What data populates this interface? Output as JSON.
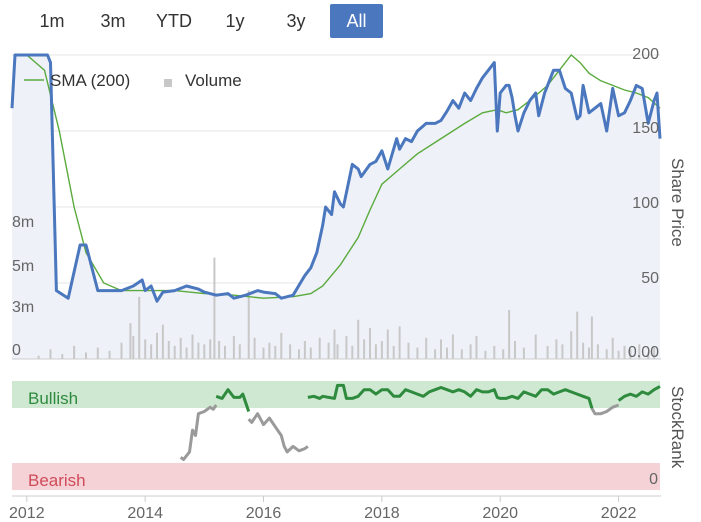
{
  "range_selector": {
    "buttons": [
      {
        "label": "1m",
        "active": false
      },
      {
        "label": "3m",
        "active": false
      },
      {
        "label": "YTD",
        "active": false
      },
      {
        "label": "1y",
        "active": false
      },
      {
        "label": "3y",
        "active": false
      },
      {
        "label": "All",
        "active": true
      }
    ]
  },
  "colors": {
    "price": "#4a77be",
    "sma": "#5aaa3c",
    "volume": "#c8c8c8",
    "rank_bullish": "#2e8b3e",
    "rank_neutral": "#9a9a9a",
    "bullish_band": "#cfe8d2",
    "bearish_band": "#f5d2d6",
    "price_area": "#eef1f8"
  },
  "chart_data": [
    {
      "type": "line",
      "ylabel": "Share Price",
      "ylim": [
        0,
        200
      ],
      "y_ticks": [
        "0.00",
        "50",
        "100",
        "150",
        "200"
      ],
      "volume_ticks": [
        "0",
        "3m",
        "5m",
        "8m"
      ],
      "volume_ylim": [
        0,
        9
      ],
      "xlim": [
        2011.75,
        2022.7
      ],
      "legend": {
        "placement": "top-left",
        "entries": [
          "SMA (200)",
          "Volume"
        ]
      },
      "series": [
        {
          "name": "Share Price",
          "x": [
            2011.75,
            2011.8,
            2012.0,
            2012.15,
            2012.2,
            2012.35,
            2012.4,
            2012.5,
            2012.7,
            2012.9,
            2013.0,
            2013.1,
            2013.2,
            2013.4,
            2013.6,
            2013.8,
            2013.95,
            2014.0,
            2014.1,
            2014.2,
            2014.3,
            2014.5,
            2014.7,
            2014.9,
            2015.0,
            2015.2,
            2015.4,
            2015.5,
            2015.7,
            2015.9,
            2016.0,
            2016.2,
            2016.3,
            2016.5,
            2016.7,
            2016.8,
            2016.9,
            2017.0,
            2017.05,
            2017.15,
            2017.2,
            2017.3,
            2017.35,
            2017.5,
            2017.6,
            2017.65,
            2017.8,
            2017.9,
            2018.0,
            2018.1,
            2018.25,
            2018.3,
            2018.4,
            2018.5,
            2018.6,
            2018.75,
            2018.9,
            2019.0,
            2019.1,
            2019.2,
            2019.3,
            2019.4,
            2019.5,
            2019.6,
            2019.7,
            2019.8,
            2019.9,
            2019.95,
            2020.0,
            2020.1,
            2020.15,
            2020.2,
            2020.25,
            2020.3,
            2020.4,
            2020.5,
            2020.6,
            2020.65,
            2020.75,
            2020.8,
            2020.9,
            2021.0,
            2021.1,
            2021.2,
            2021.3,
            2021.35,
            2021.4,
            2021.5,
            2021.6,
            2021.7,
            2021.8,
            2021.9,
            2022.0,
            2022.1,
            2022.2,
            2022.3,
            2022.4,
            2022.5,
            2022.6,
            2022.65,
            2022.7
          ],
          "y": [
            165,
            200,
            200,
            200,
            200,
            200,
            195,
            45,
            40,
            75,
            75,
            60,
            45,
            45,
            45,
            48,
            52,
            45,
            48,
            38,
            44,
            45,
            48,
            46,
            44,
            42,
            43,
            40,
            42,
            45,
            44,
            43,
            40,
            42,
            55,
            60,
            70,
            88,
            100,
            95,
            110,
            102,
            100,
            128,
            125,
            120,
            128,
            130,
            137,
            125,
            145,
            138,
            145,
            143,
            150,
            155,
            155,
            157,
            163,
            170,
            165,
            175,
            170,
            178,
            185,
            190,
            195,
            150,
            175,
            180,
            180,
            172,
            160,
            150,
            162,
            170,
            175,
            160,
            175,
            180,
            190,
            190,
            178,
            175,
            158,
            160,
            180,
            162,
            165,
            168,
            150,
            178,
            160,
            162,
            170,
            180,
            178,
            155,
            170,
            175,
            145
          ]
        },
        {
          "name": "SMA (200)",
          "x": [
            2012.0,
            2012.3,
            2012.55,
            2012.8,
            2013.0,
            2013.3,
            2013.6,
            2014.0,
            2014.5,
            2015.0,
            2015.5,
            2016.0,
            2016.5,
            2016.8,
            2017.0,
            2017.3,
            2017.6,
            2017.8,
            2018.0,
            2018.3,
            2018.6,
            2019.0,
            2019.4,
            2019.7,
            2019.95,
            2020.1,
            2020.3,
            2020.5,
            2020.8,
            2021.0,
            2021.2,
            2021.35,
            2021.5,
            2021.7,
            2021.9,
            2022.1,
            2022.3,
            2022.5,
            2022.7
          ],
          "y": [
            200,
            190,
            150,
            100,
            70,
            50,
            45,
            45,
            45,
            43,
            42,
            40,
            41,
            43,
            48,
            62,
            80,
            98,
            115,
            125,
            135,
            145,
            155,
            162,
            164,
            162,
            164,
            170,
            180,
            190,
            200,
            195,
            188,
            183,
            180,
            177,
            175,
            172,
            165
          ]
        }
      ],
      "volume_bars": [
        {
          "x": 2012.2,
          "v": 0.2
        },
        {
          "x": 2012.4,
          "v": 0.6
        },
        {
          "x": 2012.6,
          "v": 0.3
        },
        {
          "x": 2012.8,
          "v": 0.8
        },
        {
          "x": 2013.0,
          "v": 0.4
        },
        {
          "x": 2013.2,
          "v": 0.7
        },
        {
          "x": 2013.4,
          "v": 0.5
        },
        {
          "x": 2013.6,
          "v": 1.0
        },
        {
          "x": 2013.75,
          "v": 2.2
        },
        {
          "x": 2013.8,
          "v": 1.4
        },
        {
          "x": 2013.9,
          "v": 3.8
        },
        {
          "x": 2014.0,
          "v": 1.2
        },
        {
          "x": 2014.1,
          "v": 0.9
        },
        {
          "x": 2014.2,
          "v": 1.6
        },
        {
          "x": 2014.3,
          "v": 2.1
        },
        {
          "x": 2014.4,
          "v": 1.1
        },
        {
          "x": 2014.5,
          "v": 0.8
        },
        {
          "x": 2014.6,
          "v": 1.3
        },
        {
          "x": 2014.7,
          "v": 0.7
        },
        {
          "x": 2014.8,
          "v": 1.5
        },
        {
          "x": 2014.9,
          "v": 1.0
        },
        {
          "x": 2015.0,
          "v": 0.9
        },
        {
          "x": 2015.1,
          "v": 1.2
        },
        {
          "x": 2015.17,
          "v": 6.2
        },
        {
          "x": 2015.25,
          "v": 1.1
        },
        {
          "x": 2015.35,
          "v": 0.8
        },
        {
          "x": 2015.5,
          "v": 1.4
        },
        {
          "x": 2015.6,
          "v": 0.9
        },
        {
          "x": 2015.75,
          "v": 4.2
        },
        {
          "x": 2015.85,
          "v": 1.3
        },
        {
          "x": 2016.0,
          "v": 0.7
        },
        {
          "x": 2016.1,
          "v": 1.0
        },
        {
          "x": 2016.2,
          "v": 0.8
        },
        {
          "x": 2016.3,
          "v": 1.6
        },
        {
          "x": 2016.45,
          "v": 0.9
        },
        {
          "x": 2016.6,
          "v": 0.6
        },
        {
          "x": 2016.7,
          "v": 1.1
        },
        {
          "x": 2016.8,
          "v": 0.7
        },
        {
          "x": 2016.95,
          "v": 1.3
        },
        {
          "x": 2017.1,
          "v": 1.0
        },
        {
          "x": 2017.2,
          "v": 1.8
        },
        {
          "x": 2017.25,
          "v": 0.9
        },
        {
          "x": 2017.4,
          "v": 1.4
        },
        {
          "x": 2017.5,
          "v": 0.8
        },
        {
          "x": 2017.6,
          "v": 2.4
        },
        {
          "x": 2017.7,
          "v": 1.2
        },
        {
          "x": 2017.8,
          "v": 1.9
        },
        {
          "x": 2017.9,
          "v": 0.9
        },
        {
          "x": 2018.0,
          "v": 1.1
        },
        {
          "x": 2018.1,
          "v": 1.8
        },
        {
          "x": 2018.2,
          "v": 0.8
        },
        {
          "x": 2018.3,
          "v": 2.0
        },
        {
          "x": 2018.45,
          "v": 1.0
        },
        {
          "x": 2018.6,
          "v": 0.7
        },
        {
          "x": 2018.75,
          "v": 1.3
        },
        {
          "x": 2018.9,
          "v": 0.6
        },
        {
          "x": 2019.0,
          "v": 1.2
        },
        {
          "x": 2019.1,
          "v": 0.7
        },
        {
          "x": 2019.2,
          "v": 1.5
        },
        {
          "x": 2019.35,
          "v": 0.6
        },
        {
          "x": 2019.5,
          "v": 0.9
        },
        {
          "x": 2019.6,
          "v": 1.4
        },
        {
          "x": 2019.75,
          "v": 0.5
        },
        {
          "x": 2019.9,
          "v": 0.8
        },
        {
          "x": 2020.05,
          "v": 0.6
        },
        {
          "x": 2020.15,
          "v": 3.0
        },
        {
          "x": 2020.25,
          "v": 1.1
        },
        {
          "x": 2020.4,
          "v": 0.7
        },
        {
          "x": 2020.6,
          "v": 1.5
        },
        {
          "x": 2020.8,
          "v": 0.8
        },
        {
          "x": 2020.95,
          "v": 1.2
        },
        {
          "x": 2021.05,
          "v": 0.9
        },
        {
          "x": 2021.2,
          "v": 1.7
        },
        {
          "x": 2021.3,
          "v": 2.9
        },
        {
          "x": 2021.4,
          "v": 1.0
        },
        {
          "x": 2021.5,
          "v": 0.7
        },
        {
          "x": 2021.55,
          "v": 2.6
        },
        {
          "x": 2021.65,
          "v": 0.9
        },
        {
          "x": 2021.8,
          "v": 0.6
        },
        {
          "x": 2021.9,
          "v": 1.3
        },
        {
          "x": 2022.0,
          "v": 0.5
        },
        {
          "x": 2022.1,
          "v": 0.8
        },
        {
          "x": 2022.2,
          "v": 0.6
        },
        {
          "x": 2022.35,
          "v": 0.9
        },
        {
          "x": 2022.5,
          "v": 0.4
        },
        {
          "x": 2022.6,
          "v": 0.7
        }
      ]
    },
    {
      "type": "line",
      "ylabel": "StockRank",
      "ylim": [
        0,
        100
      ],
      "x_ticks": [
        "2012",
        "2014",
        "2016",
        "2018",
        "2020",
        "2022"
      ],
      "x_tick_values": [
        2012,
        2014,
        2016,
        2018,
        2020,
        2022
      ],
      "band_labels": {
        "bullish": "Bullish",
        "bearish": "Bearish"
      },
      "bullish_range": [
        80,
        100
      ],
      "bearish_range": [
        0,
        10
      ],
      "y_ticks": [
        "0"
      ],
      "neutral_segments": [
        {
          "x": [
            2014.6,
            2014.65,
            2014.75,
            2014.8,
            2014.85,
            2014.9,
            2015.0,
            2015.1,
            2015.15,
            2015.2
          ],
          "y": [
            30,
            28,
            35,
            55,
            50,
            70,
            72,
            76,
            74,
            78
          ]
        },
        {
          "x": [
            2015.75,
            2015.8,
            2015.9,
            2016.0,
            2016.1,
            2016.2,
            2016.3,
            2016.35,
            2016.4,
            2016.5,
            2016.6,
            2016.7,
            2016.75
          ],
          "y": [
            65,
            62,
            70,
            60,
            66,
            58,
            50,
            40,
            35,
            40,
            36,
            38,
            40
          ]
        },
        {
          "x": [
            2021.55,
            2021.6,
            2021.7,
            2021.8,
            2021.9,
            2022.0
          ],
          "y": [
            75,
            70,
            70,
            72,
            76,
            78
          ]
        }
      ],
      "bullish_segments": [
        {
          "x": [
            2015.2,
            2015.25,
            2015.3,
            2015.4,
            2015.5,
            2015.55,
            2015.6,
            2015.65,
            2015.75
          ],
          "y": [
            86,
            85,
            84,
            92,
            85,
            85,
            85,
            88,
            72
          ]
        },
        {
          "x": [
            2016.75,
            2016.85,
            2016.95,
            2017.0,
            2017.1,
            2017.2,
            2017.25,
            2017.35,
            2017.4,
            2017.5,
            2017.6,
            2017.7,
            2017.8,
            2017.9,
            2018.0,
            2018.1,
            2018.2,
            2018.3,
            2018.4,
            2018.5,
            2018.6,
            2018.7,
            2018.8,
            2018.9,
            2019.0,
            2019.1,
            2019.2,
            2019.3,
            2019.4,
            2019.5,
            2019.6,
            2019.7,
            2019.8,
            2019.9,
            2019.95,
            2020.0,
            2020.1,
            2020.2,
            2020.3,
            2020.4,
            2020.5,
            2020.6,
            2020.7,
            2020.8,
            2020.9,
            2021.0,
            2021.1,
            2021.2,
            2021.3,
            2021.4,
            2021.5,
            2021.55
          ],
          "y": [
            85,
            86,
            84,
            86,
            85,
            84,
            96,
            96,
            84,
            84,
            86,
            92,
            92,
            88,
            92,
            92,
            86,
            86,
            92,
            90,
            88,
            86,
            90,
            92,
            94,
            92,
            90,
            92,
            90,
            86,
            92,
            90,
            90,
            92,
            85,
            84,
            84,
            86,
            84,
            90,
            88,
            86,
            92,
            92,
            88,
            90,
            92,
            90,
            88,
            86,
            84,
            75
          ]
        },
        {
          "x": [
            2022.0,
            2022.1,
            2022.2,
            2022.3,
            2022.4,
            2022.5,
            2022.6,
            2022.7
          ],
          "y": [
            82,
            86,
            88,
            86,
            90,
            88,
            92,
            95
          ]
        }
      ]
    }
  ]
}
